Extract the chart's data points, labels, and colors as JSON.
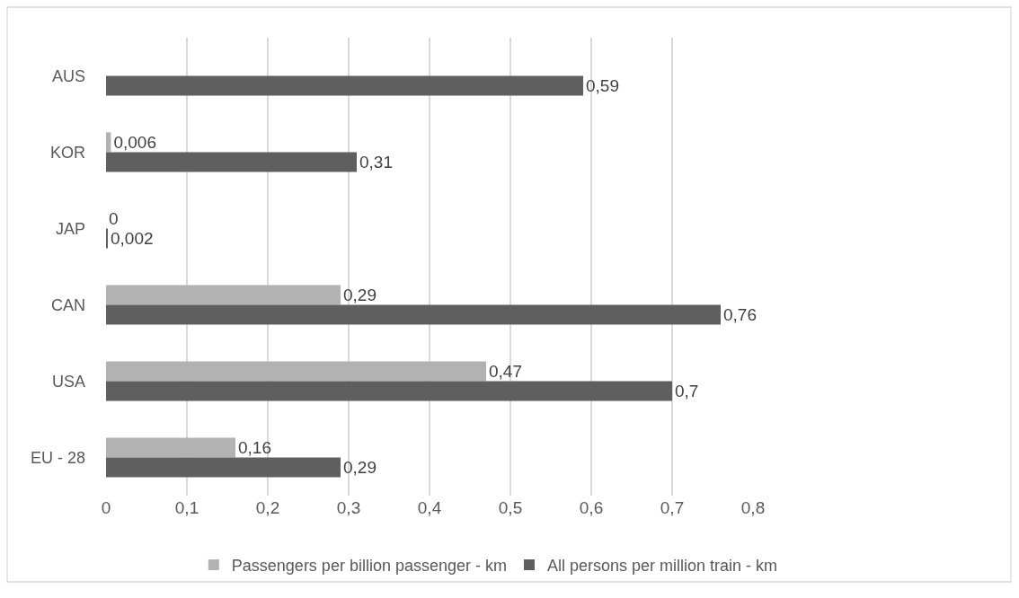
{
  "chart_data": {
    "type": "bar",
    "orientation": "horizontal",
    "categories": [
      "AUS",
      "KOR",
      "JAP",
      "CAN",
      "USA",
      "EU - 28"
    ],
    "series": [
      {
        "name": "Passengers per billion passenger - km",
        "color": "#b2b2b2",
        "values": [
          null,
          0.006,
          0,
          0.29,
          0.47,
          0.16
        ],
        "value_labels": [
          null,
          "0,006",
          "0",
          "0,29",
          "0,47",
          "0,16"
        ]
      },
      {
        "name": "All persons per million train - km",
        "color": "#5f5f5f",
        "values": [
          0.59,
          0.31,
          0.002,
          0.76,
          0.7,
          0.29
        ],
        "value_labels": [
          "0,59",
          "0,31",
          "0,002",
          "0,76",
          "0,7",
          "0,29"
        ]
      }
    ],
    "xlim": [
      0,
      0.8
    ],
    "xticks": [
      0,
      {
        "value": 0.1,
        "label": "0,1"
      },
      {
        "value": 0.2,
        "label": "0,2"
      },
      {
        "value": 0.3,
        "label": "0,3"
      },
      {
        "value": 0.4,
        "label": "0,4"
      },
      {
        "value": 0.5,
        "label": "0,5"
      },
      {
        "value": 0.6,
        "label": "0,6"
      },
      {
        "value": 0.7,
        "label": "0,7"
      },
      {
        "value": 0.8,
        "label": "0,8"
      }
    ],
    "grid": "x",
    "legend": "bottom"
  }
}
